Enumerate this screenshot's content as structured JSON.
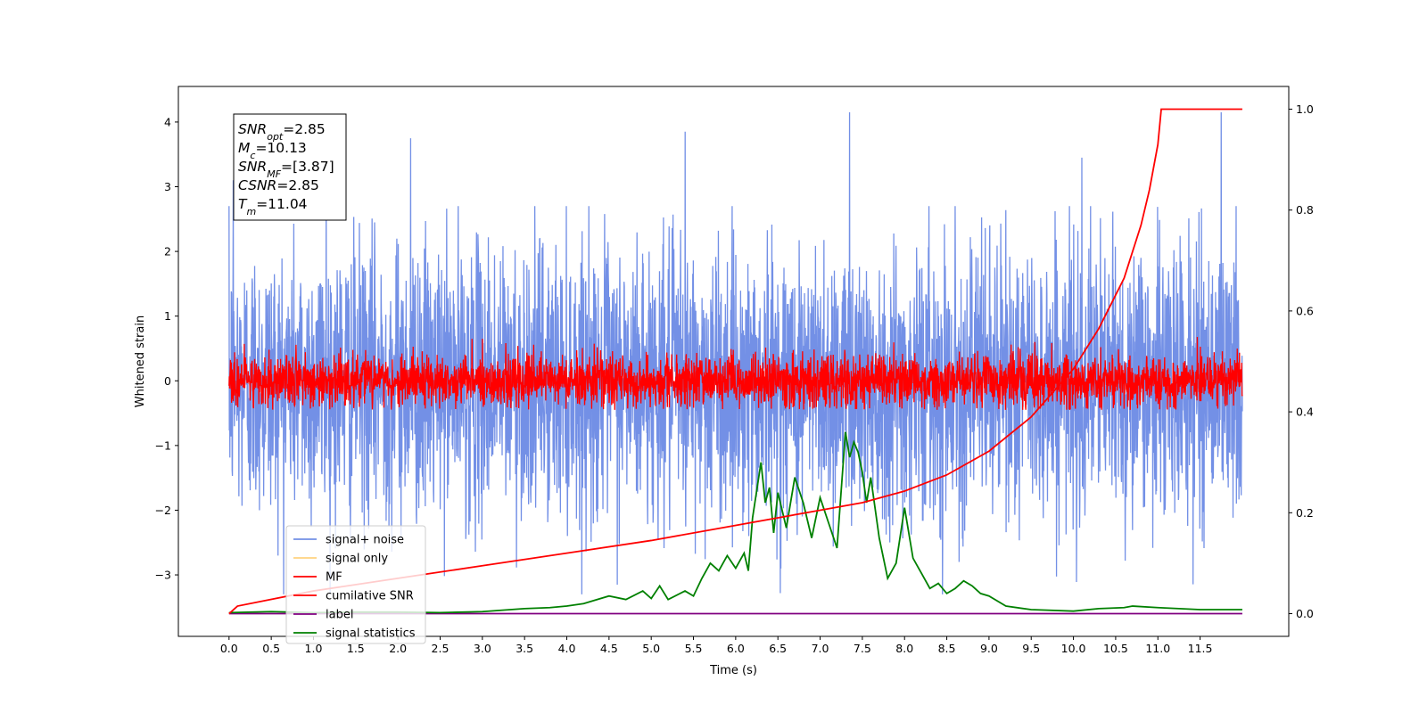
{
  "chart_data": {
    "type": "line",
    "xlabel": "Time (s)",
    "ylabel": "Whitened strain",
    "xlim": [
      -0.6,
      12.55
    ],
    "ylim": [
      -3.95,
      4.55
    ],
    "y2lim": [
      -0.045,
      1.045
    ],
    "xticks": [
      "0.0",
      "0.5",
      "1.0",
      "1.5",
      "2.0",
      "2.5",
      "3.0",
      "3.5",
      "4.0",
      "4.5",
      "5.0",
      "5.5",
      "6.0",
      "6.5",
      "7.0",
      "7.5",
      "8.0",
      "8.5",
      "9.0",
      "9.5",
      "10.0",
      "10.5",
      "11.0",
      "11.5"
    ],
    "yticks": [
      "4",
      "3",
      "2",
      "1",
      "0",
      "−1",
      "−2",
      "−3"
    ],
    "y2ticks": [
      "1.0",
      "0.8",
      "0.6",
      "0.4",
      "0.2",
      "0.0"
    ],
    "grid": false,
    "legend_position": "lower-left",
    "info_box": {
      "snr_opt": {
        "base": "SNR",
        "sub": "opt",
        "value": "=2.85"
      },
      "mc": {
        "base": "M",
        "sub": "c",
        "value": "=10.13"
      },
      "snr_mf": {
        "base": "SNR",
        "sub": "MF",
        "value": "=[3.87]"
      },
      "csnr": {
        "base": "CSNR",
        "sub": "",
        "value": "=2.85"
      },
      "tm": {
        "base": "T",
        "sub": "m",
        "value": "=11.04"
      }
    },
    "series": [
      {
        "name": "signal+ noise",
        "color": "#7390e6",
        "axis": "left",
        "x_range": [
          0,
          12
        ],
        "noise_std": 1.05,
        "notable_peaks": [
          [
            1.15,
            3.4
          ],
          [
            2.15,
            3.75
          ],
          [
            5.4,
            3.85
          ],
          [
            7.35,
            4.15
          ],
          [
            10.1,
            3.45
          ],
          [
            11.75,
            4.15
          ],
          [
            0.05,
            3.1
          ]
        ]
      },
      {
        "name": "signal only",
        "color": "#ffd27f",
        "axis": "left",
        "values": []
      },
      {
        "name": "MF",
        "color": "#ff0000",
        "axis": "left",
        "x_range": [
          0,
          12
        ],
        "noise_std": 0.2,
        "band": [
          -0.45,
          0.95
        ]
      },
      {
        "name": "cumilative SNR",
        "color": "#ff0000",
        "axis": "right",
        "x": [
          0.0,
          0.1,
          1.0,
          2.0,
          3.0,
          4.0,
          5.0,
          6.0,
          7.0,
          7.5,
          8.0,
          8.5,
          9.0,
          9.5,
          10.0,
          10.3,
          10.6,
          10.8,
          10.9,
          11.0,
          11.04,
          12.0
        ],
        "y": [
          0.0,
          0.015,
          0.045,
          0.07,
          0.095,
          0.12,
          0.145,
          0.175,
          0.205,
          0.22,
          0.243,
          0.275,
          0.322,
          0.39,
          0.485,
          0.565,
          0.665,
          0.77,
          0.84,
          0.93,
          1.0,
          1.0
        ]
      },
      {
        "name": "label",
        "color": "#800080",
        "axis": "right",
        "x": [
          0,
          12
        ],
        "y": [
          0,
          0
        ]
      },
      {
        "name": "signal statistics",
        "color": "#008000",
        "axis": "right",
        "x": [
          0.0,
          0.5,
          1.0,
          1.5,
          2.0,
          2.5,
          3.0,
          3.5,
          3.8,
          4.0,
          4.2,
          4.3,
          4.5,
          4.7,
          4.9,
          5.0,
          5.1,
          5.2,
          5.4,
          5.5,
          5.6,
          5.7,
          5.8,
          5.9,
          6.0,
          6.1,
          6.15,
          6.2,
          6.3,
          6.35,
          6.4,
          6.45,
          6.5,
          6.6,
          6.7,
          6.8,
          6.9,
          7.0,
          7.1,
          7.2,
          7.3,
          7.35,
          7.4,
          7.45,
          7.5,
          7.55,
          7.6,
          7.65,
          7.7,
          7.8,
          7.9,
          8.0,
          8.05,
          8.1,
          8.2,
          8.3,
          8.4,
          8.5,
          8.6,
          8.7,
          8.8,
          8.9,
          9.0,
          9.2,
          9.5,
          10.0,
          10.3,
          10.6,
          10.7,
          11.0,
          11.5,
          12.0
        ],
        "y": [
          0.002,
          0.004,
          0.002,
          0.003,
          0.003,
          0.002,
          0.004,
          0.01,
          0.012,
          0.015,
          0.02,
          0.025,
          0.035,
          0.028,
          0.045,
          0.03,
          0.055,
          0.028,
          0.045,
          0.035,
          0.07,
          0.1,
          0.085,
          0.115,
          0.09,
          0.12,
          0.085,
          0.19,
          0.3,
          0.22,
          0.25,
          0.16,
          0.24,
          0.17,
          0.27,
          0.22,
          0.15,
          0.23,
          0.18,
          0.13,
          0.36,
          0.31,
          0.34,
          0.32,
          0.28,
          0.22,
          0.27,
          0.21,
          0.15,
          0.07,
          0.1,
          0.21,
          0.16,
          0.11,
          0.08,
          0.05,
          0.06,
          0.04,
          0.05,
          0.065,
          0.055,
          0.04,
          0.035,
          0.015,
          0.008,
          0.005,
          0.01,
          0.012,
          0.015,
          0.012,
          0.008,
          0.008
        ]
      }
    ]
  }
}
